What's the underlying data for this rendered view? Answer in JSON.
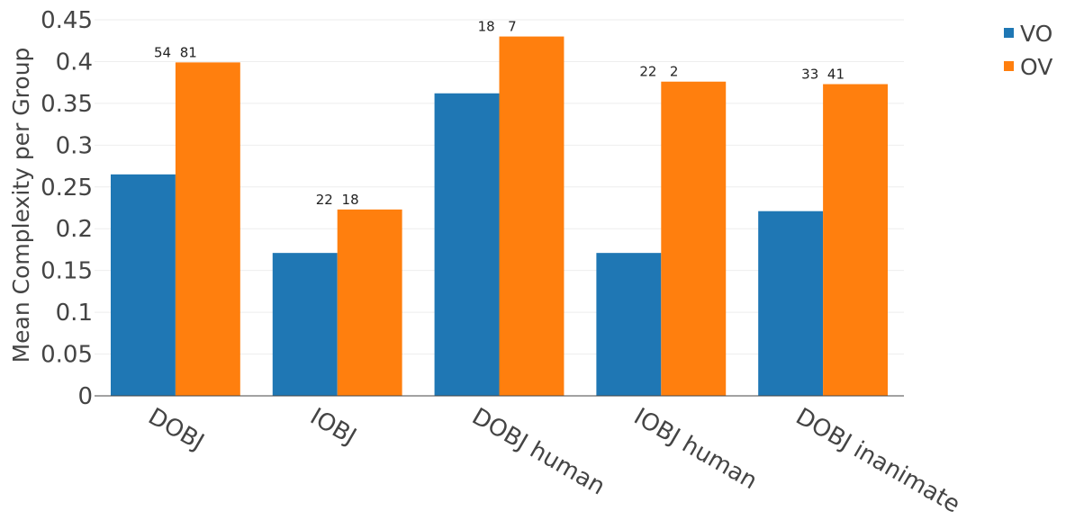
{
  "chart_data": {
    "type": "bar",
    "title": "",
    "xlabel": "",
    "ylabel": "Mean Complexity per Group",
    "ylim": [
      0,
      0.45
    ],
    "yticks": [
      "0",
      "0.05",
      "0.1",
      "0.15",
      "0.2",
      "0.25",
      "0.3",
      "0.35",
      "0.4",
      "0.45"
    ],
    "ytick_values": [
      0,
      0.05,
      0.1,
      0.15,
      0.2,
      0.25,
      0.3,
      0.35,
      0.4,
      0.45
    ],
    "categories": [
      "DOBJ",
      "IOBJ",
      "DOBJ human",
      "IOBJ human",
      "DOBJ inanimate"
    ],
    "series": [
      {
        "name": "VO",
        "color": "#1f77b4",
        "values": [
          0.265,
          0.171,
          0.362,
          0.171,
          0.221
        ]
      },
      {
        "name": "OV",
        "color": "#ff7f0e",
        "values": [
          0.399,
          0.223,
          0.43,
          0.376,
          0.373
        ]
      }
    ],
    "count_labels": [
      [
        "54",
        "81"
      ],
      [
        "22",
        "18"
      ],
      [
        "18",
        "7"
      ],
      [
        "22",
        "2"
      ],
      [
        "33",
        "41"
      ]
    ],
    "grid": true,
    "legend_position": "top-right"
  }
}
